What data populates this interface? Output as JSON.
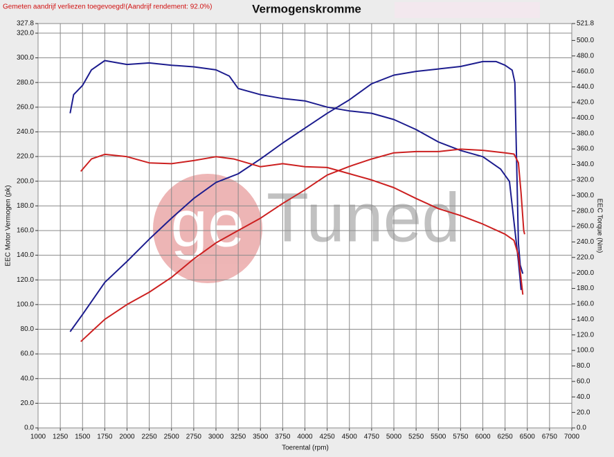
{
  "chart_data": {
    "type": "line",
    "title": "Vermogenskromme",
    "subtitle": "Gemeten aandrijf verliezen toegevoegd!(Aandrijf rendement: 92.0%)",
    "xlabel": "Toerental (rpm)",
    "ylabel": "EEC Motor Vermogen (pk)",
    "y2label": "EEC Torque (Nm)",
    "logo": {
      "mark": "ge",
      "text": "Tuned"
    },
    "grid": true,
    "xlim": [
      1000,
      7000
    ],
    "xticks": [
      1000,
      1250,
      1500,
      1750,
      2000,
      2250,
      2500,
      2750,
      3000,
      3250,
      3500,
      3750,
      4000,
      4250,
      4500,
      4750,
      5000,
      5250,
      5500,
      5750,
      6000,
      6250,
      6500,
      6750,
      7000
    ],
    "ylim": [
      0,
      327.8
    ],
    "yticks": [
      {
        "value": 0,
        "label": "0.0"
      },
      {
        "value": 20,
        "label": "20.0"
      },
      {
        "value": 40,
        "label": "40.0"
      },
      {
        "value": 60,
        "label": "60.0"
      },
      {
        "value": 80,
        "label": "80.0"
      },
      {
        "value": 100,
        "label": "100.0"
      },
      {
        "value": 120,
        "label": "120.0"
      },
      {
        "value": 140,
        "label": "140.0"
      },
      {
        "value": 160,
        "label": "160.0"
      },
      {
        "value": 180,
        "label": "180.0"
      },
      {
        "value": 200,
        "label": "200.0"
      },
      {
        "value": 220,
        "label": "220.0"
      },
      {
        "value": 240,
        "label": "240.0"
      },
      {
        "value": 260,
        "label": "260.0"
      },
      {
        "value": 280,
        "label": "280.0"
      },
      {
        "value": 300,
        "label": "300.0"
      },
      {
        "value": 320,
        "label": "320.0"
      },
      327.8
    ],
    "y2lim": [
      0,
      521.8
    ],
    "y2ticks": [
      {
        "value": 0,
        "label": "0.0"
      },
      {
        "value": 20,
        "label": "20.0"
      },
      {
        "value": 40,
        "label": "40.0"
      },
      {
        "value": 60,
        "label": "60.0"
      },
      {
        "value": 80,
        "label": "80.0"
      },
      {
        "value": 100,
        "label": "100.0"
      },
      {
        "value": 120,
        "label": "120.0"
      },
      {
        "value": 140,
        "label": "140.0"
      },
      {
        "value": 160,
        "label": "160.0"
      },
      {
        "value": 180,
        "label": "180.0"
      },
      {
        "value": 200,
        "label": "200.0"
      },
      {
        "value": 220,
        "label": "220.0"
      },
      {
        "value": 240,
        "label": "240.0"
      },
      {
        "value": 260,
        "label": "260.0"
      },
      {
        "value": 280,
        "label": "280.0"
      },
      {
        "value": 300,
        "label": "300.0"
      },
      {
        "value": 320,
        "label": "320.0"
      },
      {
        "value": 340,
        "label": "340.0"
      },
      {
        "value": 360,
        "label": "360.0"
      },
      {
        "value": 380,
        "label": "380.0"
      },
      {
        "value": 400,
        "label": "400.0"
      },
      {
        "value": 420,
        "label": "420.0"
      },
      {
        "value": 440,
        "label": "440.0"
      },
      {
        "value": 460,
        "label": "460.0"
      },
      {
        "value": 480,
        "label": "480.0"
      },
      {
        "value": 500,
        "label": "500.0"
      },
      521.8
    ],
    "series": [
      {
        "color": "#1c1c8e",
        "axis": "y",
        "x": [
          1360,
          1500,
          1750,
          2000,
          2250,
          2500,
          2750,
          3000,
          3250,
          3500,
          3750,
          4000,
          4250,
          4500,
          4750,
          5000,
          5250,
          5500,
          5750,
          6000,
          6150,
          6250,
          6330,
          6360,
          6400,
          6420,
          6450
        ],
        "values": [
          78,
          92,
          118,
          135,
          153,
          170,
          186,
          199,
          206,
          218,
          231,
          243,
          255,
          266,
          279,
          286,
          289,
          291,
          293,
          297,
          297,
          294,
          290,
          280,
          150,
          132,
          125
        ]
      },
      {
        "color": "#1c1c8e",
        "axis": "y2",
        "x": [
          1360,
          1400,
          1500,
          1600,
          1750,
          2000,
          2250,
          2500,
          2750,
          3000,
          3150,
          3250,
          3500,
          3750,
          4000,
          4250,
          4500,
          4750,
          5000,
          5250,
          5500,
          5750,
          6000,
          6200,
          6300,
          6400,
          6430
        ],
        "values": [
          406,
          430,
          442,
          462,
          474,
          469,
          471,
          468,
          466,
          462,
          454,
          438,
          430,
          425,
          422,
          414,
          409,
          406,
          398,
          385,
          369,
          358,
          350,
          334,
          318,
          215,
          178
        ]
      },
      {
        "color": "#cc2020",
        "axis": "y",
        "x": [
          1480,
          1600,
          1750,
          2000,
          2250,
          2500,
          2750,
          3000,
          3250,
          3500,
          3750,
          4000,
          4250,
          4500,
          4750,
          5000,
          5250,
          5500,
          5750,
          6000,
          6250,
          6350,
          6400,
          6430,
          6460,
          6470
        ],
        "values": [
          70,
          78,
          88,
          100,
          110,
          122,
          137,
          150,
          160,
          170,
          182,
          193,
          205,
          212,
          218,
          223,
          224,
          224,
          226,
          225,
          223,
          222,
          215,
          190,
          160,
          157
        ]
      },
      {
        "color": "#cc2020",
        "axis": "y2",
        "x": [
          1480,
          1600,
          1750,
          2000,
          2250,
          2500,
          2750,
          3000,
          3200,
          3500,
          3750,
          4000,
          4250,
          4500,
          4750,
          5000,
          5250,
          5500,
          5750,
          6000,
          6250,
          6350,
          6400,
          6450
        ],
        "values": [
          331,
          347,
          353,
          350,
          342,
          341,
          345,
          350,
          347,
          337,
          341,
          337,
          336,
          328,
          320,
          310,
          296,
          283,
          274,
          263,
          250,
          242,
          223,
          172
        ]
      }
    ]
  }
}
